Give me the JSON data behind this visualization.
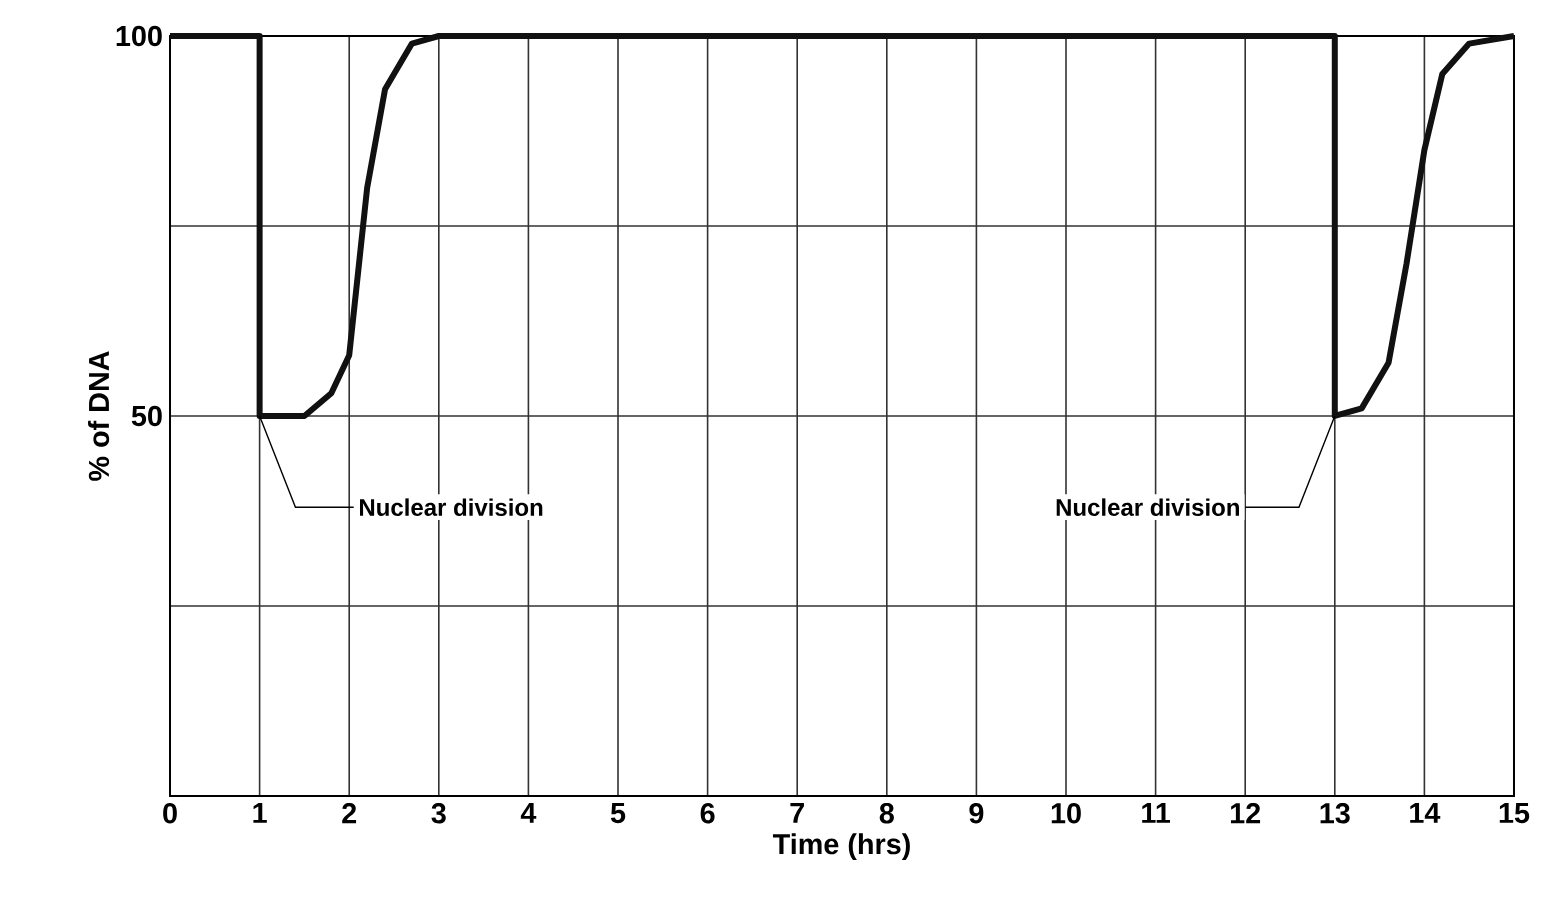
{
  "chart_data": {
    "type": "line",
    "xlabel": "Time (hrs)",
    "ylabel": "% of DNA",
    "x": [
      0,
      1,
      1,
      1.5,
      1.8,
      2,
      2.2,
      2.4,
      2.7,
      3,
      13,
      13,
      13.3,
      13.6,
      13.8,
      14,
      14.2,
      14.5,
      15
    ],
    "values": [
      100,
      100,
      50,
      50,
      53,
      58,
      80,
      93,
      99,
      100,
      100,
      50,
      51,
      57,
      70,
      85,
      95,
      99,
      100
    ],
    "color": "#111111",
    "xlim": [
      0,
      15
    ],
    "ylim": [
      0,
      100
    ],
    "xticks": [
      0,
      1,
      2,
      3,
      4,
      5,
      6,
      7,
      8,
      9,
      10,
      11,
      12,
      13,
      14,
      15
    ],
    "yticks": [
      {
        "value": 25,
        "label": null
      },
      50,
      {
        "value": 75,
        "label": null
      },
      100
    ],
    "grid": true,
    "marker": "none",
    "line_style": "solid",
    "annotations": [
      {
        "text": "Nuclear division",
        "x": 1,
        "y": 50
      },
      {
        "text": "Nuclear division",
        "x": 13,
        "y": 50
      }
    ]
  }
}
